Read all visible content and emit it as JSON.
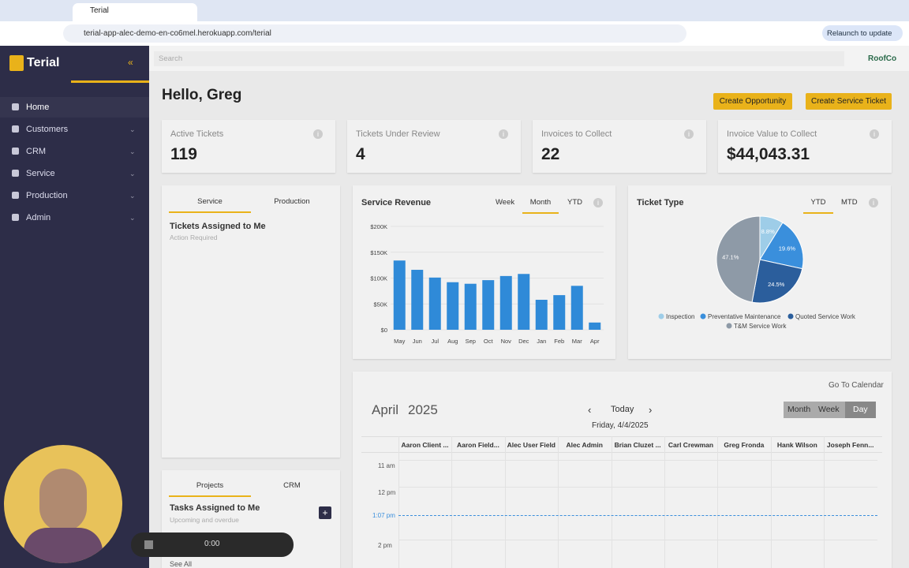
{
  "browser": {
    "tab": "Terial",
    "url": "terial-app-alec-demo-en-co6mel.herokuapp.com/terial",
    "relaunch": "Relaunch to update"
  },
  "sidebar": {
    "brand": "Terial",
    "nav": [
      "Home",
      "Customers",
      "CRM",
      "Service",
      "Production",
      "Admin"
    ]
  },
  "topbar": {
    "search": "Search",
    "org": "RoofCo"
  },
  "header": {
    "greeting": "Hello, Greg",
    "buttons": [
      "Create Opportunity",
      "Create Service Ticket"
    ]
  },
  "stats": [
    {
      "label": "Active Tickets",
      "value": 119
    },
    {
      "label": "Tickets Under Review",
      "value": 4
    },
    {
      "label": "Invoices to Collect",
      "value": 22
    },
    {
      "label": "Invoice Value to Collect",
      "value": "$44,043.31"
    }
  ],
  "tickets_panel": {
    "tabs": [
      "Service",
      "Production"
    ],
    "title": "Tickets Assigned to Me",
    "subtitle": "Action Required"
  },
  "revenue_chart": {
    "type": "bar",
    "title": "Service Revenue",
    "tabs": [
      "Week",
      "Month",
      "YTD"
    ],
    "categories": [
      "May",
      "Jun",
      "Jul",
      "Aug",
      "Sep",
      "Oct",
      "Nov",
      "Dec",
      "Jan",
      "Feb",
      "Mar",
      "Apr"
    ],
    "values": [
      134000,
      116000,
      101000,
      92000,
      89000,
      96000,
      104000,
      108000,
      58000,
      67000,
      85000,
      14000
    ],
    "color": "#2f8ad8",
    "ylim": [
      0,
      200000
    ],
    "yticks": [
      {
        "value": 0,
        "label": "$0"
      },
      {
        "value": 50000,
        "label": "$50K"
      },
      {
        "value": 100000,
        "label": "$100K"
      },
      {
        "value": 150000,
        "label": "$150K"
      },
      {
        "value": 200000,
        "label": "$200K"
      }
    ],
    "grid": true
  },
  "ticket_chart": {
    "type": "pie",
    "title": "Ticket Type",
    "tabs": [
      "YTD",
      "MTD"
    ],
    "categories": [
      "Inspection",
      "Preventative Maintenance",
      "Quoted Service Work",
      "T&M Service Work"
    ],
    "values": [
      8.8,
      19.6,
      24.5,
      47.1
    ],
    "value_labels": [
      "8.8%",
      "19.6%",
      "24.5%",
      "47.1%"
    ],
    "colors": [
      "#9ecde8",
      "#3a8fdc",
      "#2b5e9c",
      "#8e9aa7"
    ]
  },
  "calendar": {
    "link": "Go To Calendar",
    "month": "April",
    "year": "2025",
    "today": "Today",
    "date": "Friday, 4/4/2025",
    "views": [
      "Month",
      "Week",
      "Day"
    ],
    "columns": [
      "Aaron Client ...",
      "Aaron Field...",
      "Alec User Field",
      "Alec Admin",
      "Brian Cluzet ...",
      "Carl Crewman",
      "Greg Fronda",
      "Hank Wilson",
      "Joseph Fenn..."
    ],
    "times": [
      "11 am",
      "12 pm",
      "2 pm"
    ],
    "now": "1:07 pm"
  },
  "tasks_panel": {
    "tabs": [
      "Projects",
      "CRM"
    ],
    "title": "Tasks Assigned to Me",
    "subtitle": "Upcoming and overdue",
    "link": "See All"
  },
  "recorder": {
    "time": "0:00"
  }
}
